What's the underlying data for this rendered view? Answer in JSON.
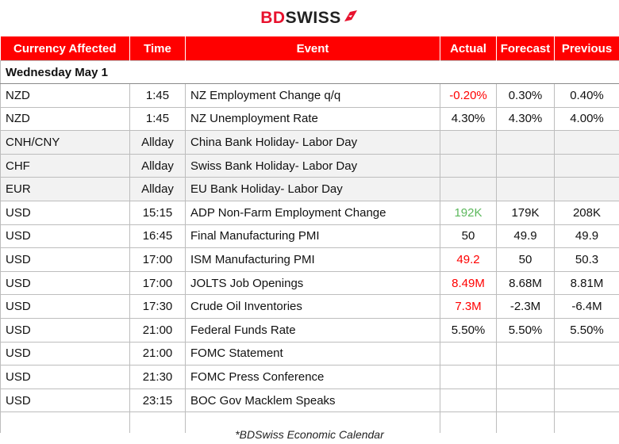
{
  "brand": {
    "name_part1": "BD",
    "name_part2": "SWISS",
    "accent": "#e8112d",
    "icon": "flag-swoosh-icon"
  },
  "table": {
    "headers": [
      "Currency Affected",
      "Time",
      "Event",
      "Actual",
      "Forecast",
      "Previous"
    ],
    "header_bg": "#ff0000",
    "day_label": "Wednesday May 1",
    "rows": [
      {
        "currency": "NZD",
        "time": "1:45",
        "event": "NZ Employment Change q/q",
        "actual": "-0.20%",
        "actual_color": "red",
        "forecast": "0.30%",
        "previous": "0.40%",
        "holiday": false
      },
      {
        "currency": "NZD",
        "time": "1:45",
        "event": "NZ Unemployment Rate",
        "actual": "4.30%",
        "actual_color": "",
        "forecast": "4.30%",
        "previous": "4.00%",
        "holiday": false
      },
      {
        "currency": "CNH/CNY",
        "time": "Allday",
        "event": "China Bank Holiday-  Labor Day",
        "actual": "",
        "actual_color": "",
        "forecast": "",
        "previous": "",
        "holiday": true
      },
      {
        "currency": "CHF",
        "time": "Allday",
        "event": "Swiss Bank Holiday- Labor Day",
        "actual": "",
        "actual_color": "",
        "forecast": "",
        "previous": "",
        "holiday": true
      },
      {
        "currency": "EUR",
        "time": "Allday",
        "event": "EU Bank Holiday-  Labor Day",
        "actual": "",
        "actual_color": "",
        "forecast": "",
        "previous": "",
        "holiday": true
      },
      {
        "currency": "USD",
        "time": "15:15",
        "event": "ADP Non-Farm Employment Change",
        "actual": "192K",
        "actual_color": "green",
        "forecast": "179K",
        "previous": "208K",
        "holiday": false
      },
      {
        "currency": "USD",
        "time": "16:45",
        "event": "Final Manufacturing PMI",
        "actual": "50",
        "actual_color": "",
        "forecast": "49.9",
        "previous": "49.9",
        "holiday": false
      },
      {
        "currency": "USD",
        "time": "17:00",
        "event": "ISM Manufacturing PMI",
        "actual": "49.2",
        "actual_color": "red",
        "forecast": "50",
        "previous": "50.3",
        "holiday": false
      },
      {
        "currency": "USD",
        "time": "17:00",
        "event": "JOLTS Job Openings",
        "actual": "8.49M",
        "actual_color": "red",
        "forecast": "8.68M",
        "previous": "8.81M",
        "holiday": false
      },
      {
        "currency": "USD",
        "time": "17:30",
        "event": "Crude Oil Inventories",
        "actual": "7.3M",
        "actual_color": "red",
        "forecast": "-2.3M",
        "previous": "-6.4M",
        "holiday": false
      },
      {
        "currency": "USD",
        "time": "21:00",
        "event": "Federal Funds Rate",
        "actual": "5.50%",
        "actual_color": "",
        "forecast": "5.50%",
        "previous": "5.50%",
        "holiday": false
      },
      {
        "currency": "USD",
        "time": "21:00",
        "event": "FOMC Statement",
        "actual": "",
        "actual_color": "",
        "forecast": "",
        "previous": "",
        "holiday": false
      },
      {
        "currency": "USD",
        "time": "21:30",
        "event": "FOMC Press Conference",
        "actual": "",
        "actual_color": "",
        "forecast": "",
        "previous": "",
        "holiday": false
      },
      {
        "currency": "USD",
        "time": "23:15",
        "event": "BOC Gov Macklem Speaks",
        "actual": "",
        "actual_color": "",
        "forecast": "",
        "previous": "",
        "holiday": false
      }
    ]
  },
  "footer": {
    "note": "*BDSwiss Economic Calendar"
  }
}
